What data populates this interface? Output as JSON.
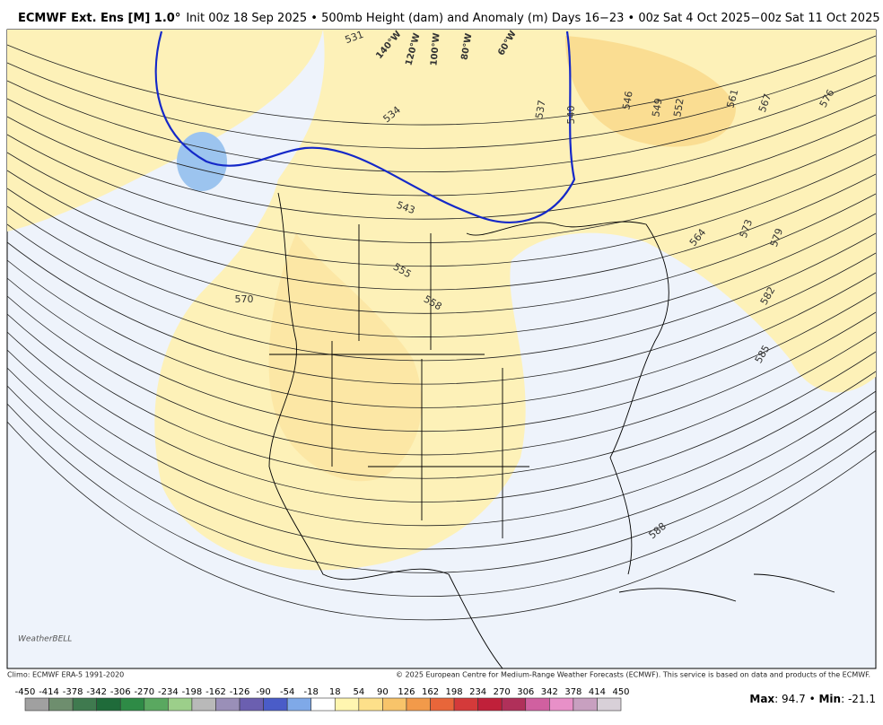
{
  "header": {
    "title_main": "ECMWF Ext. Ens [M] 1.0°",
    "title_rest": "Init 00z 18 Sep 2025 • 500mb Height (dam) and Anomaly (m) Days 16−23 • 00z Sat 4 Oct 2025−00z Sat 11 Oct 2025"
  },
  "map": {
    "contour_labels": [
      531,
      534,
      537,
      540,
      546,
      549,
      552,
      561,
      567,
      576,
      543,
      555,
      558,
      570,
      564,
      573,
      579,
      582,
      585,
      588
    ],
    "longitude_labels": [
      "140°W",
      "120°W",
      "100°W",
      "80°W",
      "60°W"
    ],
    "logo": "WeatherBELL"
  },
  "footer": {
    "climo": "Climo: ECMWF ERA-5 1991-2020",
    "copyright": "© 2025 European Centre for Medium-Range Weather Forecasts (ECMWF). This service is based on data and products of the ECMWF."
  },
  "colorbar": {
    "ticks": [
      -450,
      -414,
      -378,
      -342,
      -306,
      -270,
      -234,
      -198,
      -162,
      -126,
      -90,
      -54,
      -18,
      18,
      54,
      90,
      126,
      162,
      198,
      234,
      270,
      306,
      342,
      378,
      414,
      450
    ],
    "colors": [
      "#a0a0a0",
      "#6e8e6e",
      "#3f7a4f",
      "#1f6b3a",
      "#2e8b46",
      "#5aa860",
      "#9ccf8a",
      "#b9b9b9",
      "#9a8fb8",
      "#6b5fb0",
      "#4a5cc8",
      "#7fa9e8",
      "#ffffff",
      "#fff6b0",
      "#fde08a",
      "#f8c46a",
      "#f29a4a",
      "#e8663a",
      "#d43a3a",
      "#c0203a",
      "#b0305a",
      "#d060a0",
      "#e890c8",
      "#c8a0c0",
      "#d8d0d8"
    ]
  },
  "stats": {
    "max_label": "Max",
    "max": 94.7,
    "min_label": "Min",
    "min": -21.1
  }
}
